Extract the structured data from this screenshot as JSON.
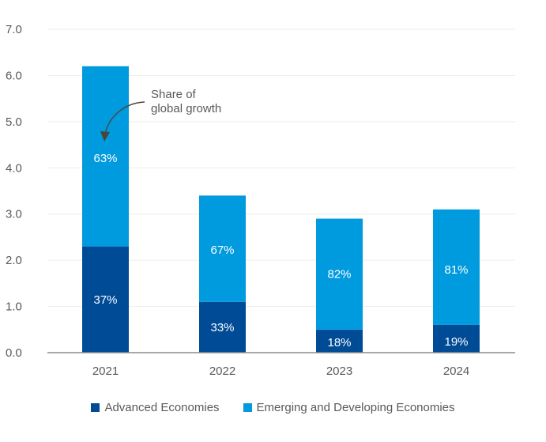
{
  "chart_data": {
    "type": "bar",
    "stacked": true,
    "title": "",
    "xlabel": "",
    "ylabel": "",
    "categories": [
      "2021",
      "2022",
      "2023",
      "2024"
    ],
    "series": [
      {
        "name": "Advanced Economies",
        "color": "#004B96",
        "values": [
          2.3,
          1.1,
          0.5,
          0.6
        ],
        "labels": [
          "37%",
          "33%",
          "18%",
          "19%"
        ]
      },
      {
        "name": "Emerging and Developing Economies",
        "color": "#009ADE",
        "values": [
          3.9,
          2.3,
          2.4,
          2.5
        ],
        "labels": [
          "63%",
          "67%",
          "82%",
          "81%"
        ]
      }
    ],
    "totals": [
      6.2,
      3.4,
      2.9,
      3.1
    ],
    "ylim": [
      0,
      7
    ],
    "yticks": [
      "0.0",
      "1.0",
      "2.0",
      "3.0",
      "4.0",
      "5.0",
      "6.0",
      "7.0"
    ],
    "grid": true,
    "legend_position": "bottom",
    "annotation": {
      "text_line1": "Share of",
      "text_line2": "global growth",
      "points_to": "2021 Emerging and Developing Economies segment"
    }
  }
}
